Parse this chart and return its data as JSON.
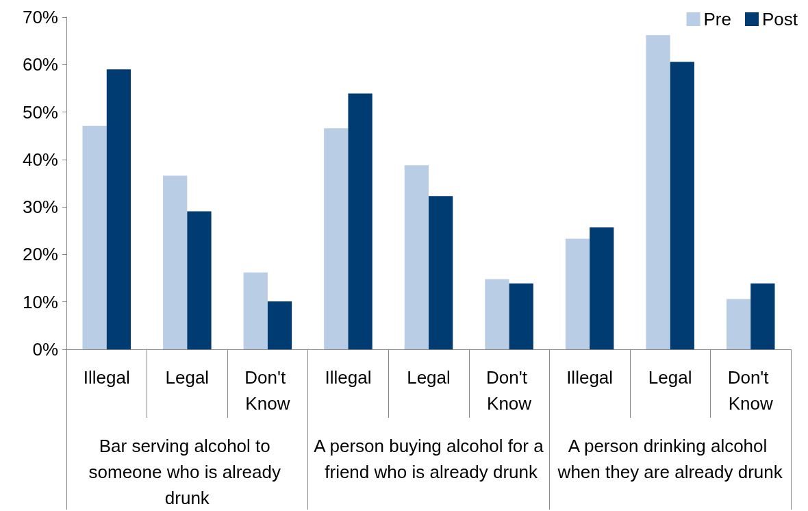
{
  "chart_data": {
    "type": "bar",
    "categories": [
      "Illegal",
      "Legal",
      "Don't Know",
      "Illegal",
      "Legal",
      "Don't Know",
      "Illegal",
      "Legal",
      "Don't Know"
    ],
    "series": [
      {
        "name": "Pre",
        "color": "#b9cde5",
        "values": [
          47.1,
          36.6,
          16.2,
          46.6,
          38.8,
          14.8,
          23.3,
          66.2,
          10.6
        ]
      },
      {
        "name": "Post",
        "color": "#003b71",
        "values": [
          59,
          29.1,
          10.1,
          53.9,
          32.3,
          13.9,
          25.7,
          60.6,
          13.9
        ]
      }
    ],
    "annotations": [
      "Bar serving alcohol to someone who is already drunk",
      "A person buying alcohol for a friend who is already drunk",
      "A person drinking alcohol when they are already drunk"
    ],
    "ylim": [
      0,
      70
    ],
    "yticks": [
      {
        "value": 0,
        "label": "0%"
      },
      {
        "value": 10,
        "label": "10%"
      },
      {
        "value": 20,
        "label": "20%"
      },
      {
        "value": 30,
        "label": "30%"
      },
      {
        "value": 40,
        "label": "40%"
      },
      {
        "value": 50,
        "label": "50%"
      },
      {
        "value": 60,
        "label": "60%"
      },
      {
        "value": 70,
        "label": "70%"
      }
    ],
    "grid": false,
    "legend": "top right"
  }
}
